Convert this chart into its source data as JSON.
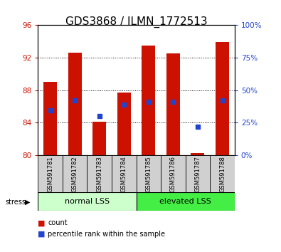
{
  "title": "GDS3868 / ILMN_1772513",
  "samples": [
    "GSM591781",
    "GSM591782",
    "GSM591783",
    "GSM591784",
    "GSM591785",
    "GSM591786",
    "GSM591787",
    "GSM591788"
  ],
  "bar_tops": [
    89.0,
    92.6,
    84.1,
    87.7,
    93.5,
    92.5,
    80.25,
    93.9
  ],
  "bar_base": 80.0,
  "blue_vals": [
    85.5,
    86.7,
    84.8,
    86.2,
    86.6,
    86.6,
    83.5,
    86.7
  ],
  "ylim": [
    80,
    96
  ],
  "yticks_left": [
    80,
    84,
    88,
    92,
    96
  ],
  "yticks_right_labels": [
    "0%",
    "25%",
    "50%",
    "75%",
    "100%"
  ],
  "yticks_right_vals": [
    80,
    84,
    88,
    92,
    96
  ],
  "group1_label": "normal LSS",
  "group2_label": "elevated LSS",
  "stress_label": "stress",
  "legend_count": "count",
  "legend_pct": "percentile rank within the sample",
  "bar_color": "#cc1100",
  "blue_color": "#2244cc",
  "group1_bg": "#ccffcc",
  "group2_bg": "#44ee44",
  "gray_bg": "#d0d0d0",
  "title_fontsize": 11,
  "tick_fontsize": 7.5,
  "sample_fontsize": 6.0,
  "group_fontsize": 8,
  "legend_fontsize": 7
}
